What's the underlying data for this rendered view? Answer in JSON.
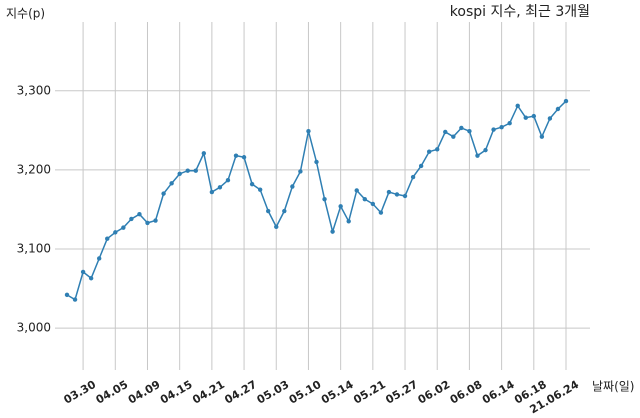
{
  "chart_data": {
    "type": "line",
    "title": "kospi 지수, 최근 3개월",
    "y_label": "지수(p)",
    "x_label": "날짜(일)",
    "categories": [
      null,
      null,
      "03.30",
      null,
      null,
      null,
      "04.05",
      null,
      null,
      null,
      "04.09",
      null,
      null,
      null,
      "04.15",
      null,
      null,
      null,
      "04.21",
      null,
      null,
      null,
      "04.27",
      null,
      null,
      null,
      "05.03",
      null,
      null,
      null,
      "05.10",
      null,
      null,
      null,
      "05.14",
      null,
      null,
      null,
      "05.21",
      null,
      null,
      null,
      "05.27",
      null,
      null,
      null,
      "06.02",
      null,
      null,
      null,
      "06.08",
      null,
      null,
      null,
      "06.14",
      null,
      null,
      null,
      "06.18",
      null,
      null,
      null,
      "21.06.24"
    ],
    "series": [
      {
        "name": "kospi",
        "color": "#2f7fb3",
        "values": [
          3042,
          3036,
          3071,
          3063,
          3088,
          3113,
          3121,
          3127,
          3138,
          3144,
          3133,
          3136,
          3170,
          3183,
          3195,
          3199,
          3199,
          3221,
          3172,
          3178,
          3187,
          3218,
          3216,
          3182,
          3175,
          3148,
          3128,
          3148,
          3179,
          3198,
          3249,
          3210,
          3163,
          3122,
          3154,
          3135,
          3174,
          3163,
          3157,
          3146,
          3172,
          3169,
          3167,
          3191,
          3205,
          3223,
          3226,
          3248,
          3242,
          3253,
          3249,
          3218,
          3225,
          3251,
          3254,
          3259,
          3281,
          3266,
          3268,
          3242,
          3265,
          3277,
          3287
        ]
      }
    ],
    "ylim": [
      2947,
      3387
    ],
    "yticks": [
      {
        "value": 3000,
        "label": "3,000"
      },
      {
        "value": 3100,
        "label": "3,100"
      },
      {
        "value": 3200,
        "label": "3,200"
      },
      {
        "value": 3300,
        "label": "3,300"
      }
    ],
    "grid": true
  }
}
